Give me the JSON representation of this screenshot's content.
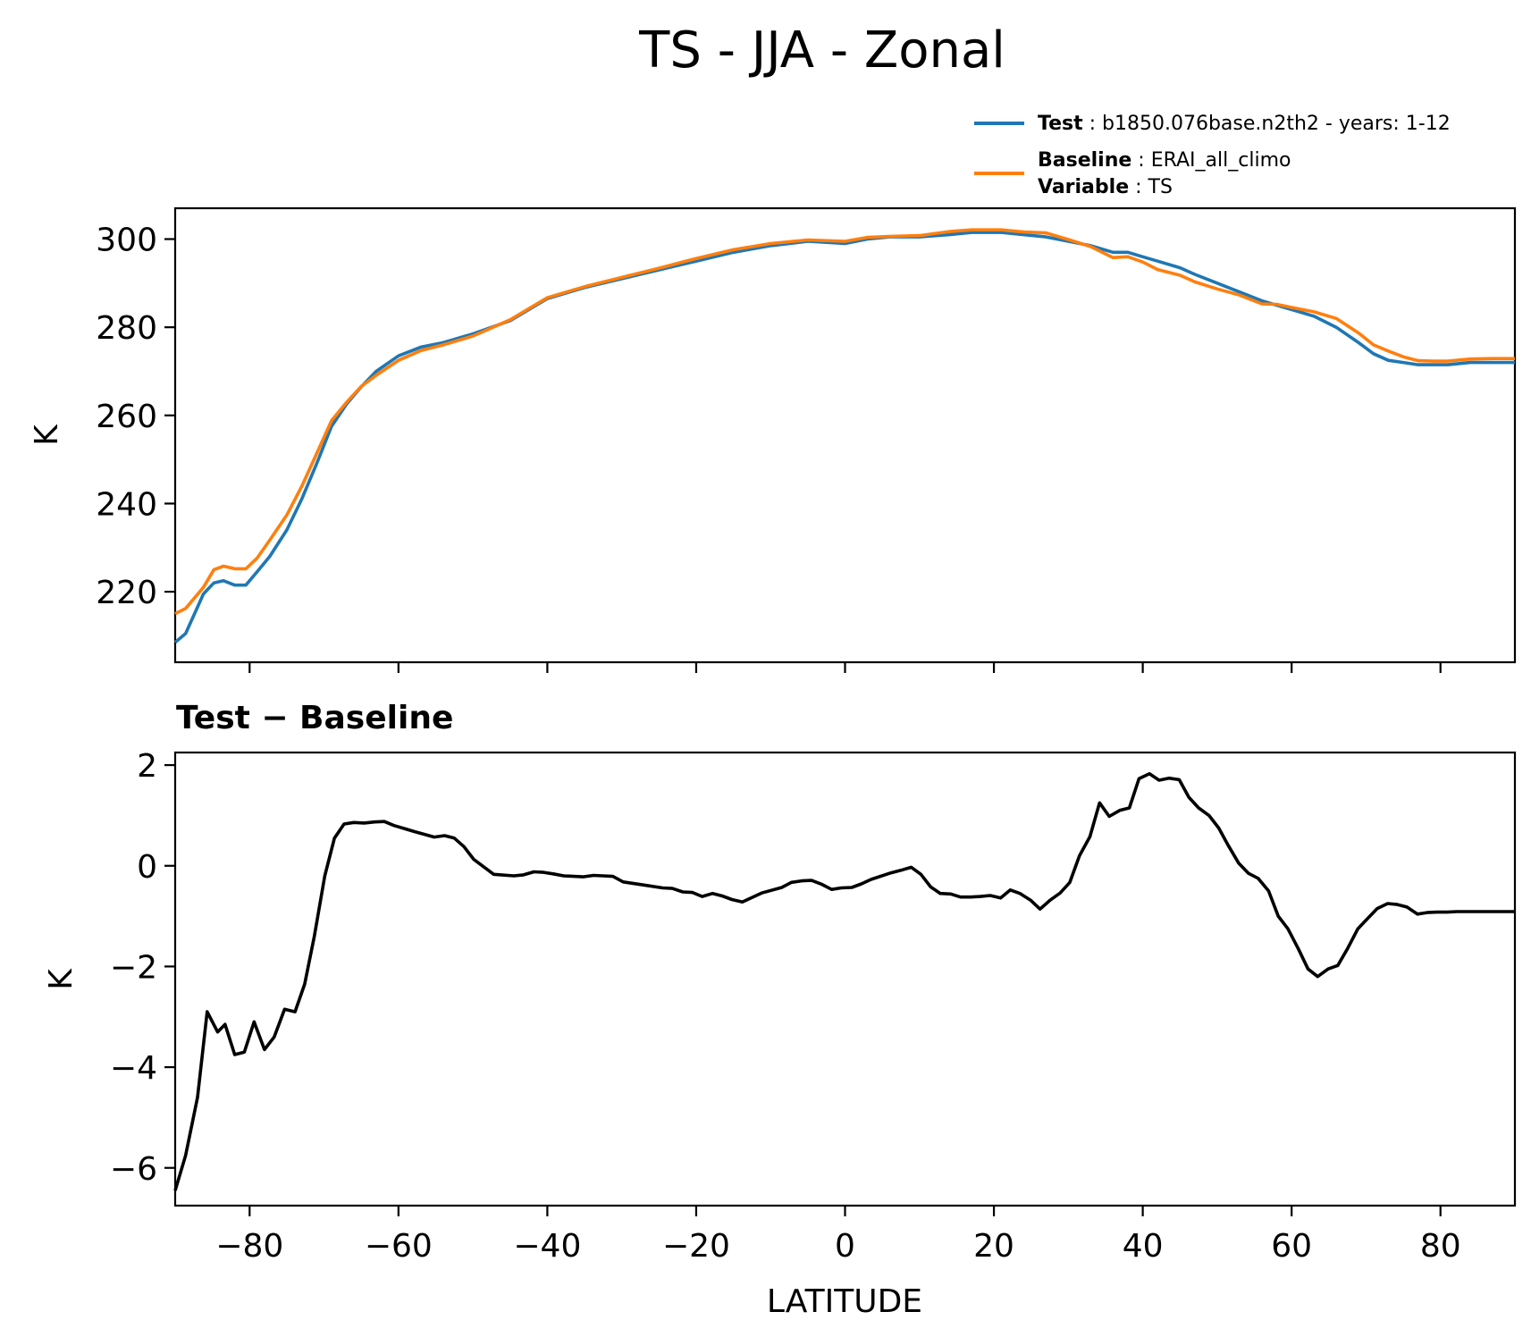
{
  "chart_data": [
    {
      "type": "line",
      "title": "TS - JJA - Zonal",
      "xlabel": "",
      "ylabel": "K",
      "xlim": [
        -90,
        90
      ],
      "ylim": [
        204,
        307
      ],
      "x_ticks": [
        -80,
        -60,
        -40,
        -20,
        0,
        20,
        40,
        60,
        80
      ],
      "y_ticks": [
        220,
        240,
        260,
        280,
        300
      ],
      "y_tick_labels": [
        "220",
        "240",
        "260",
        "280",
        "300"
      ],
      "grid": false,
      "legend": {
        "placement": "above-right",
        "entries": [
          {
            "bold": "Test",
            "sep": " : ",
            "text": "b1850.076base.n2th2 - years: 1-12"
          },
          {
            "bold": "Baseline",
            "sep": " : ",
            "text": "ERAI_all_climo"
          },
          {
            "bold": "Variable",
            "sep": " : ",
            "text": "TS"
          }
        ]
      },
      "series": [
        {
          "name": "Test",
          "color": "#1f77b4",
          "x": [
            -90,
            -88.6,
            -86.2,
            -84.8,
            -83.5,
            -82.0,
            -80.5,
            -79.0,
            -77.3,
            -75.0,
            -73.0,
            -71.0,
            -69.0,
            -67.0,
            -65.0,
            -63.0,
            -60.0,
            -57.0,
            -54.0,
            -50.0,
            -45.0,
            -40.0,
            -35.0,
            -30.0,
            -25.0,
            -20.0,
            -15.0,
            -10.0,
            -5.0,
            0.0,
            3.0,
            6.0,
            10.0,
            14.0,
            17.0,
            21.0,
            24.0,
            27.0,
            30.0,
            33.0,
            36.0,
            38.0,
            40.0,
            42.0,
            45.0,
            47.0,
            50.0,
            53.0,
            56.0,
            58.0,
            60.0,
            63.0,
            66.0,
            69.0,
            71.0,
            73.0,
            75.0,
            77.0,
            79.0,
            81.0,
            84.0,
            87.0,
            90.0
          ],
          "y": [
            208.5,
            210.5,
            219.5,
            222.0,
            222.5,
            221.5,
            221.5,
            224.5,
            228.0,
            234.0,
            241.0,
            249.0,
            257.5,
            262.5,
            266.5,
            270.0,
            273.5,
            275.5,
            276.5,
            278.5,
            281.5,
            286.5,
            289.0,
            291.0,
            293.0,
            295.0,
            297.0,
            298.5,
            299.5,
            299.0,
            300.0,
            300.5,
            300.5,
            301.0,
            301.5,
            301.5,
            301.0,
            300.5,
            299.5,
            298.5,
            297.0,
            297.0,
            296.0,
            295.0,
            293.5,
            292.0,
            290.0,
            288.0,
            286.0,
            285.0,
            284.0,
            282.5,
            280.0,
            276.5,
            274.0,
            272.5,
            272.0,
            271.5,
            271.5,
            271.5,
            272.0,
            272.0,
            272.0
          ]
        },
        {
          "name": "Baseline",
          "color": "#ff7f0e",
          "x": [
            -90,
            -88.6,
            -86.2,
            -84.8,
            -83.5,
            -82.0,
            -80.5,
            -79.0,
            -77.3,
            -75.0,
            -73.0,
            -71.0,
            -69.0,
            -67.0,
            -65.0,
            -63.0,
            -60.0,
            -57.0,
            -54.0,
            -50.0,
            -45.0,
            -40.0,
            -35.0,
            -30.0,
            -25.0,
            -20.0,
            -15.0,
            -10.0,
            -5.0,
            0.0,
            3.0,
            6.0,
            10.0,
            14.0,
            17.0,
            21.0,
            24.0,
            27.0,
            30.0,
            33.0,
            36.0,
            38.0,
            40.0,
            42.0,
            45.0,
            47.0,
            50.0,
            53.0,
            56.0,
            58.0,
            60.0,
            63.0,
            66.0,
            69.0,
            71.0,
            73.0,
            75.0,
            77.0,
            79.0,
            81.0,
            84.0,
            87.0,
            90.0
          ],
          "y": [
            215.0,
            216.2,
            221.0,
            225.0,
            225.8,
            225.2,
            225.2,
            227.6,
            231.7,
            237.4,
            243.9,
            251.3,
            258.8,
            262.9,
            266.6,
            269.1,
            272.5,
            274.7,
            276.0,
            278.0,
            281.7,
            286.7,
            289.2,
            291.3,
            293.4,
            295.6,
            297.6,
            299.0,
            299.8,
            299.5,
            300.4,
            300.6,
            300.8,
            301.7,
            302.1,
            302.1,
            301.6,
            301.4,
            299.9,
            298.3,
            295.8,
            296.0,
            294.8,
            293.1,
            291.8,
            290.3,
            288.7,
            287.3,
            285.3,
            285.2,
            284.5,
            283.5,
            282.0,
            278.7,
            276.0,
            274.6,
            273.3,
            272.4,
            272.3,
            272.3,
            272.8,
            272.9,
            272.9
          ]
        }
      ]
    },
    {
      "type": "line",
      "title": "Test − Baseline",
      "xlabel": "LATITUDE",
      "ylabel": "K",
      "xlim": [
        -90,
        90
      ],
      "ylim": [
        -6.75,
        2.25
      ],
      "x_ticks": [
        -80,
        -60,
        -40,
        -20,
        0,
        20,
        40,
        60,
        80
      ],
      "x_tick_labels": [
        "−80",
        "−60",
        "−40",
        "−20",
        "0",
        "20",
        "40",
        "60",
        "80"
      ],
      "y_ticks": [
        -6,
        -4,
        -2,
        0,
        2
      ],
      "y_tick_labels": [
        "−6",
        "−4",
        "−2",
        "0",
        "2"
      ],
      "grid": false,
      "series": [
        {
          "name": "",
          "color": "#000000",
          "x": [
            -90,
            -88.6,
            -87.0,
            -85.7,
            -84.3,
            -83.3,
            -82.0,
            -80.7,
            -79.4,
            -78.0,
            -76.7,
            -75.3,
            -73.9,
            -72.6,
            -71.3,
            -69.9,
            -68.6,
            -67.3,
            -66.0,
            -64.6,
            -63.2,
            -61.9,
            -60.6,
            -59.2,
            -57.9,
            -55.2,
            -53.8,
            -52.5,
            -51.2,
            -49.9,
            -47.2,
            -44.5,
            -43.2,
            -41.8,
            -40.5,
            -39.2,
            -37.8,
            -35.2,
            -33.8,
            -32.5,
            -31.2,
            -29.8,
            -27.1,
            -24.5,
            -23.2,
            -21.8,
            -20.5,
            -19.2,
            -17.8,
            -16.5,
            -15.2,
            -13.8,
            -11.2,
            -8.5,
            -7.2,
            -5.8,
            -4.5,
            -3.1,
            -1.8,
            -0.5,
            0.9,
            2.2,
            3.5,
            6.2,
            7.5,
            8.9,
            10.2,
            11.5,
            12.8,
            14.2,
            15.5,
            16.9,
            18.2,
            19.5,
            20.9,
            22.2,
            23.5,
            24.9,
            26.2,
            27.5,
            28.9,
            30.2,
            31.5,
            32.9,
            34.2,
            35.5,
            36.9,
            38.2,
            39.5,
            40.9,
            42.2,
            43.5,
            44.9,
            46.2,
            47.5,
            48.9,
            50.2,
            51.5,
            52.9,
            54.2,
            55.5,
            56.9,
            58.2,
            59.5,
            60.9,
            62.2,
            63.5,
            64.9,
            66.2,
            67.5,
            68.9,
            70.2,
            71.5,
            72.9,
            74.2,
            75.5,
            76.9,
            78.2,
            79.5,
            80.9,
            82.2,
            83.5,
            84.9,
            86.2,
            87.5,
            88.9,
            90.0
          ],
          "y": [
            -6.45,
            -5.75,
            -4.6,
            -2.9,
            -3.3,
            -3.15,
            -3.75,
            -3.7,
            -3.1,
            -3.65,
            -3.4,
            -2.85,
            -2.9,
            -2.35,
            -1.4,
            -0.2,
            0.55,
            0.83,
            0.86,
            0.85,
            0.87,
            0.88,
            0.8,
            0.74,
            0.68,
            0.57,
            0.6,
            0.55,
            0.38,
            0.13,
            -0.17,
            -0.2,
            -0.18,
            -0.12,
            -0.13,
            -0.16,
            -0.2,
            -0.22,
            -0.19,
            -0.2,
            -0.21,
            -0.32,
            -0.38,
            -0.44,
            -0.45,
            -0.52,
            -0.53,
            -0.61,
            -0.55,
            -0.6,
            -0.67,
            -0.72,
            -0.54,
            -0.43,
            -0.33,
            -0.3,
            -0.29,
            -0.37,
            -0.47,
            -0.44,
            -0.43,
            -0.36,
            -0.27,
            -0.14,
            -0.09,
            -0.03,
            -0.17,
            -0.42,
            -0.55,
            -0.56,
            -0.62,
            -0.62,
            -0.61,
            -0.59,
            -0.64,
            -0.48,
            -0.55,
            -0.68,
            -0.86,
            -0.69,
            -0.54,
            -0.33,
            0.2,
            0.58,
            1.25,
            0.98,
            1.1,
            1.15,
            1.73,
            1.83,
            1.7,
            1.74,
            1.71,
            1.36,
            1.15,
            1.0,
            0.75,
            0.4,
            0.05,
            -0.15,
            -0.25,
            -0.5,
            -1.0,
            -1.25,
            -1.65,
            -2.05,
            -2.2,
            -2.05,
            -1.98,
            -1.65,
            -1.25,
            -1.05,
            -0.85,
            -0.75,
            -0.77,
            -0.82,
            -0.96,
            -0.93,
            -0.92,
            -0.92,
            -0.91,
            -0.91,
            -0.91,
            -0.91,
            -0.91,
            -0.91,
            -0.91
          ]
        }
      ]
    }
  ]
}
